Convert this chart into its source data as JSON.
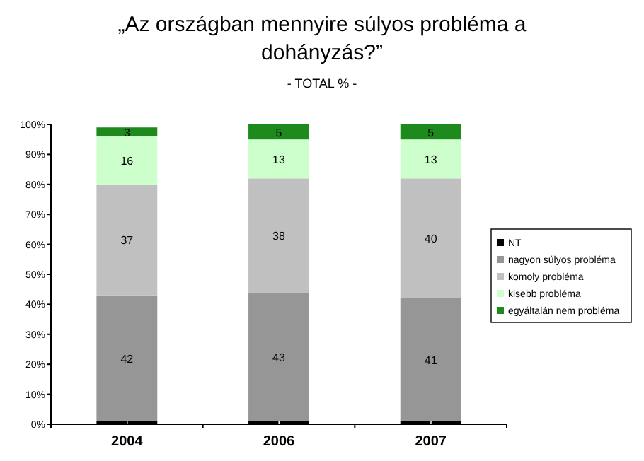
{
  "chart_data": {
    "type": "bar",
    "stacked": true,
    "title": "„Az országban mennyire súlyos probléma a dohányzás?”",
    "subtitle": "- TOTAL % -",
    "categories": [
      "2004",
      "2006",
      "2007"
    ],
    "series": [
      {
        "name": "NT",
        "color": "#000000",
        "values": [
          1,
          1,
          1
        ]
      },
      {
        "name": "nagyon súlyos probléma",
        "color": "#969696",
        "values": [
          42,
          43,
          41
        ]
      },
      {
        "name": "komoly probléma",
        "color": "#c0c0c0",
        "values": [
          37,
          38,
          40
        ]
      },
      {
        "name": "kisebb probléma",
        "color": "#ccffcc",
        "values": [
          16,
          13,
          13
        ]
      },
      {
        "name": "egyáltalán nem probléma",
        "color": "#1e8a1e",
        "values": [
          3,
          5,
          5
        ]
      }
    ],
    "ylim": [
      0,
      100
    ],
    "yticks": [
      {
        "value": 0,
        "label": "0%"
      },
      {
        "value": 10,
        "label": "10%"
      },
      {
        "value": 20,
        "label": "20%"
      },
      {
        "value": 30,
        "label": "30%"
      },
      {
        "value": 40,
        "label": "40%"
      },
      {
        "value": 50,
        "label": "50%"
      },
      {
        "value": 60,
        "label": "60%"
      },
      {
        "value": 70,
        "label": "70%"
      },
      {
        "value": 80,
        "label": "80%"
      },
      {
        "value": 90,
        "label": "90%"
      },
      {
        "value": 100,
        "label": "100%"
      }
    ],
    "data_labels": true,
    "legend": "right",
    "grid": false
  }
}
